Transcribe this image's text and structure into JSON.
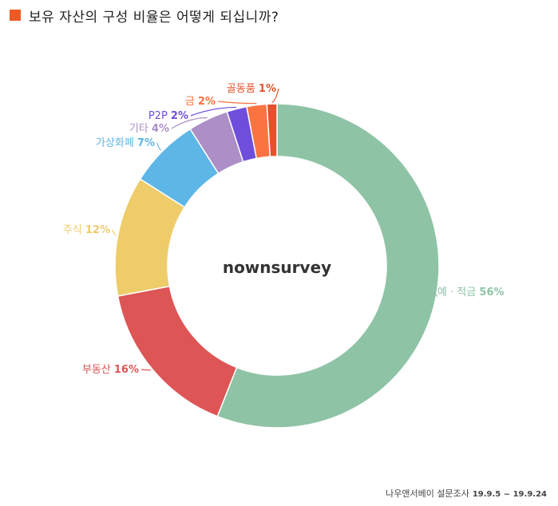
{
  "title": "보유 자산의 구성 비율은 어떻게 되십니까?",
  "footer": {
    "source": "나우앤서베이 설문조사",
    "period": "19.9.5 ~ 19.9.24"
  },
  "chart_data": {
    "type": "pie",
    "donut": true,
    "center_label": "nownsurvey",
    "slices": [
      {
        "label": "예 · 적금",
        "value": 56,
        "value_text": "56%",
        "color": "#8fc3a6"
      },
      {
        "label": "부동산",
        "value": 16,
        "value_text": "16%",
        "color": "#dd5555"
      },
      {
        "label": "주식",
        "value": 12,
        "value_text": "12%",
        "color": "#eecc6a"
      },
      {
        "label": "가상화폐",
        "value": 7,
        "value_text": "7%",
        "color": "#5db6e6"
      },
      {
        "label": "기타",
        "value": 4,
        "value_text": "4%",
        "color": "#ab8fc6"
      },
      {
        "label": "P2P",
        "value": 2,
        "value_text": "2%",
        "color": "#6e4fdb"
      },
      {
        "label": "금",
        "value": 2,
        "value_text": "2%",
        "color": "#fa7340"
      },
      {
        "label": "골동품",
        "value": 1,
        "value_text": "1%",
        "color": "#e6502a"
      }
    ]
  }
}
